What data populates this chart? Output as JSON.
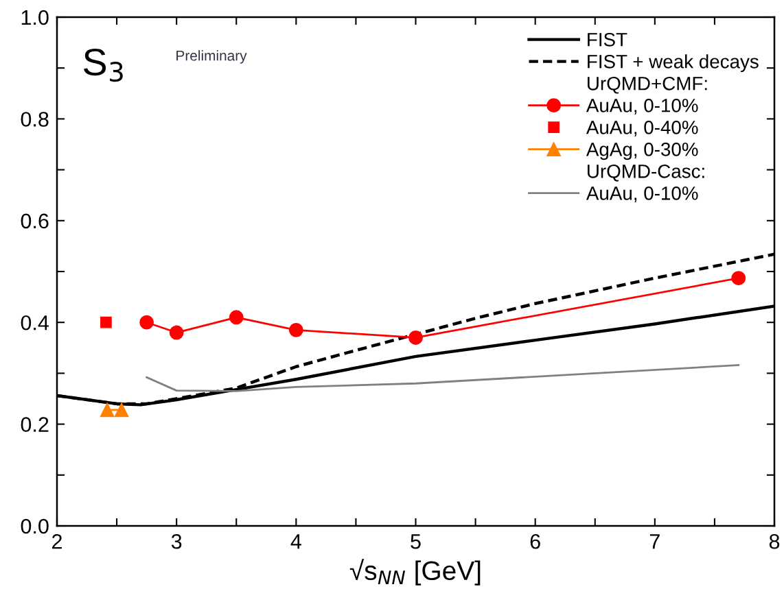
{
  "chart_data": {
    "type": "line",
    "xlabel": "√s$_{NN}$ [GeV]",
    "xlim": [
      2,
      8
    ],
    "ylim": [
      0,
      1
    ],
    "xticks": [
      2,
      {
        "value": 2.5,
        "label": null
      },
      3,
      {
        "value": 3.5,
        "label": null
      },
      4,
      {
        "value": 4.5,
        "label": null
      },
      5,
      {
        "value": 5.5,
        "label": null
      },
      6,
      {
        "value": 6.5,
        "label": null
      },
      7,
      {
        "value": 7.5,
        "label": null
      },
      8
    ],
    "yticks": [
      {
        "value": 0,
        "label": "0.0"
      },
      {
        "value": 0.1,
        "label": null
      },
      0.2,
      {
        "value": 0.3,
        "label": null
      },
      0.4,
      {
        "value": 0.5,
        "label": null
      },
      0.6,
      {
        "value": 0.7,
        "label": null
      },
      0.8,
      {
        "value": 0.9,
        "label": null
      },
      {
        "value": 1,
        "label": "1.0"
      }
    ],
    "grid": false,
    "legend": "top right",
    "annotations": [
      "S$_{3}$",
      "Preliminary",
      "UrQMD+CMF:",
      "UrQMD-Casc:"
    ],
    "series": [
      {
        "name": "FIST",
        "color": "#000000",
        "line_style": "solid",
        "marker": "none",
        "x": [
          2.0,
          2.5,
          2.7,
          3.0,
          3.5,
          4.0,
          5.0,
          6.0,
          7.0,
          8.0
        ],
        "values": [
          0.256,
          0.24,
          0.238,
          0.248,
          0.268,
          0.288,
          0.333,
          0.365,
          0.397,
          0.432
        ]
      },
      {
        "name": "FIST + weak decays",
        "color": "#000000",
        "line_style": "dashed",
        "marker": "none",
        "x": [
          2.0,
          2.5,
          2.75,
          3.0,
          3.5,
          4.0,
          4.5,
          5.5,
          6.0,
          7.0,
          8.0
        ],
        "values": [
          0.256,
          0.24,
          0.24,
          0.25,
          0.271,
          0.313,
          0.345,
          0.408,
          0.437,
          0.487,
          0.534
        ]
      },
      {
        "name": "AuAu, 0-10%",
        "color": "#ff0000",
        "line_style": "solid",
        "marker": "circle",
        "x": [
          2.75,
          3.0,
          3.5,
          4.0,
          5.0,
          7.7
        ],
        "values": [
          0.4,
          0.38,
          0.41,
          0.385,
          0.37,
          0.487
        ]
      },
      {
        "name": "AuAu, 0-40%",
        "type": "scatter",
        "color": "#ff0000",
        "marker": "square",
        "x": [
          2.41
        ],
        "values": [
          0.4
        ]
      },
      {
        "name": "AgAg, 0-30%",
        "color": "#ff8000",
        "line_style": "solid",
        "marker": "triangle",
        "x": [
          2.42,
          2.54
        ],
        "values": [
          0.228,
          0.228
        ]
      },
      {
        "name": "AuAu, 0-10%",
        "color": "#808080",
        "line_style": "solid",
        "marker": "none",
        "x": [
          2.75,
          3.0,
          3.5,
          4.0,
          5.0,
          7.7
        ],
        "values": [
          0.292,
          0.266,
          0.265,
          0.273,
          0.28,
          0.316
        ]
      }
    ]
  }
}
